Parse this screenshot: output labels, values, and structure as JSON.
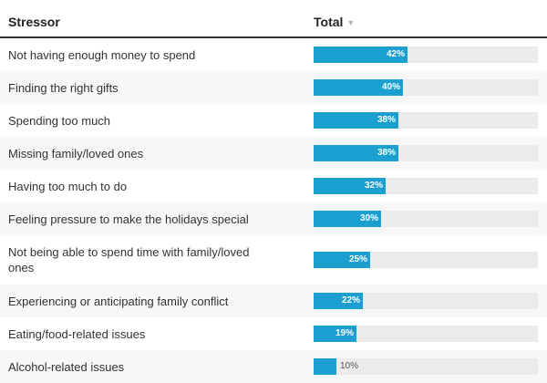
{
  "table": {
    "headers": {
      "stressor": "Stressor",
      "total": "Total",
      "sort_icon": "sort-descending-icon"
    }
  },
  "colors": {
    "bar": "#1a9fd0",
    "track": "#ebebeb",
    "row_alt": "#f7f7f7",
    "header_rule": "#333333"
  },
  "chart_data": {
    "type": "bar",
    "orientation": "horizontal",
    "title": "",
    "xlabel": "Total",
    "ylabel": "Stressor",
    "xlim": [
      0,
      100
    ],
    "categories": [
      "Not having enough money to spend",
      "Finding the right gifts",
      "Spending too much",
      "Missing family/loved ones",
      "Having too much to do",
      "Feeling pressure to make the holidays special",
      "Not being able to spend time with family/loved ones",
      "Experiencing or anticipating family conflict",
      "Eating/food-related issues",
      "Alcohol-related issues"
    ],
    "values": [
      42,
      40,
      38,
      38,
      32,
      30,
      25,
      22,
      19,
      10
    ],
    "value_labels": [
      "42%",
      "40%",
      "38%",
      "38%",
      "32%",
      "30%",
      "25%",
      "22%",
      "19%",
      "10%"
    ],
    "sort": "descending by Total"
  }
}
